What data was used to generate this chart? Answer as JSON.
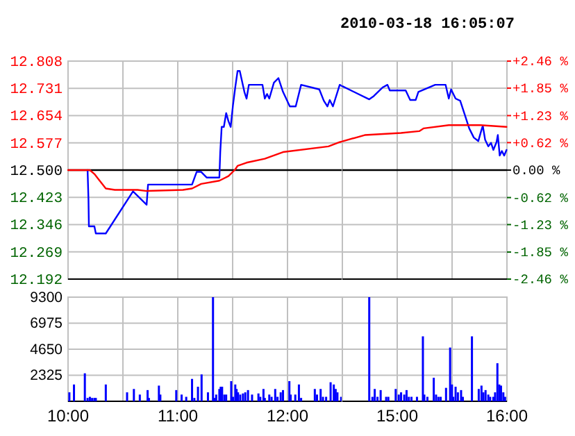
{
  "chart_data": [
    {
      "type": "line",
      "grid": true,
      "tick_labels": "y",
      "xlim": [
        10,
        12.5
      ],
      "xticks": [
        {
          "value": 10,
          "label": null
        },
        {
          "value": 10.5,
          "label": null
        },
        {
          "value": 11,
          "label": null
        },
        {
          "value": 11.5,
          "label": null
        },
        {
          "value": 12,
          "label": null
        },
        {
          "value": 12.5,
          "label": null
        }
      ],
      "ylim": [
        12.192,
        12.808
      ],
      "yticks": [
        {
          "value": 12.192,
          "label": "12.192"
        },
        {
          "value": 12.269,
          "label": "12.269"
        },
        {
          "value": 12.346,
          "label": "12.346"
        },
        {
          "value": 12.423,
          "label": "12.423"
        },
        {
          "value": 12.5,
          "label": "12.500"
        },
        {
          "value": 12.577,
          "label": "12.577"
        },
        {
          "value": 12.654,
          "label": "12.654"
        },
        {
          "value": 12.731,
          "label": "12.731"
        },
        {
          "value": 12.808,
          "label": "12.808"
        }
      ],
      "ref_lines": [
        {
          "axis": "y",
          "value": 12.5,
          "color": "#000000"
        }
      ],
      "series": [
        {
          "color": "#0000ff",
          "x": [
            10.178,
            10.186,
            10.19,
            10.24,
            10.253,
            10.344,
            10.592,
            10.716,
            10.729,
            11.13,
            11.172,
            11.213,
            11.263,
            11.379,
            11.387,
            11.4,
            11.42,
            11.441,
            11.462,
            11.482,
            11.503,
            11.524,
            11.545,
            11.565,
            11.607,
            11.627,
            11.648,
            11.772,
            11.793,
            11.814,
            11.834,
            11.876,
            11.917,
            11.959,
            12.021,
            12.075,
            12.124,
            12.29,
            12.331,
            12.364,
            12.385,
            12.414,
            12.476,
            12.5
          ],
          "values": [
            12.5,
            12.418,
            12.341,
            12.341,
            12.321,
            12.321,
            12.44,
            12.402,
            12.459,
            12.459,
            12.495,
            12.495,
            12.479,
            12.479,
            12.55,
            12.622,
            12.622,
            12.661,
            12.638,
            12.622,
            12.683,
            12.734,
            12.78,
            12.78,
            12.721,
            12.702,
            12.741,
            12.741,
            12.702,
            12.715,
            12.702,
            12.747,
            12.76,
            12.721,
            12.68,
            12.68,
            12.741,
            12.728,
            12.696,
            12.68,
            12.698,
            12.68,
            12.741,
            12.737
          ]
        },
        {
          "color": "#ff0000",
          "x": [
            10,
            10.199,
            10.24,
            10.344,
            10.427,
            10.634,
            10.716,
            11.048,
            11.13,
            11.213,
            11.379,
            11.462,
            11.524,
            11.545,
            11.627,
            11.793,
            11.959,
            12.373,
            12.476,
            12.5
          ],
          "values": [
            12.5,
            12.5,
            12.489,
            12.448,
            12.444,
            12.444,
            12.441,
            12.444,
            12.448,
            12.461,
            12.47,
            12.483,
            12.502,
            12.512,
            12.521,
            12.532,
            12.551,
            12.567,
            12.579,
            12.581
          ]
        }
      ]
    },
    {
      "type": "line",
      "title": "2010-03-18 16:05:07",
      "grid": true,
      "tick_labels": "y",
      "xlim": [
        14.5,
        16
      ],
      "xticks": [
        {
          "value": 14.5,
          "label": null
        },
        {
          "value": 15,
          "label": null
        },
        {
          "value": 15.5,
          "label": null
        },
        {
          "value": 16,
          "label": null
        }
      ],
      "ylim": [
        12.192,
        12.808
      ],
      "y2lim": [
        -2.46,
        2.46
      ],
      "y2ticks": [
        {
          "value": -2.46,
          "label": "-2.46 %"
        },
        {
          "value": -1.85,
          "label": "-1.85 %"
        },
        {
          "value": -1.23,
          "label": "-1.23 %"
        },
        {
          "value": -0.62,
          "label": "-0.62 %"
        },
        {
          "value": 0,
          "label": "0.00 %"
        },
        {
          "value": 0.62,
          "label": "+0.62 %"
        },
        {
          "value": 1.23,
          "label": "+1.23 %"
        },
        {
          "value": 1.85,
          "label": "+1.85 %"
        },
        {
          "value": 2.46,
          "label": "+2.46 %"
        }
      ],
      "ref_lines": [
        {
          "axis": "y",
          "value": 12.5,
          "color": "#000000"
        }
      ],
      "series": [
        {
          "color": "#0000ff",
          "x": [
            14.5,
            14.745,
            14.786,
            14.869,
            14.911,
            14.932,
            15.077,
            15.118,
            15.168,
            15.193,
            15.346,
            15.441,
            15.47,
            15.491,
            15.532,
            15.574,
            15.615,
            15.656,
            15.698,
            15.739,
            15.772,
            15.78,
            15.801,
            15.83,
            15.855,
            15.876,
            15.905,
            15.917,
            15.934,
            15.954,
            15.975,
            15.996
          ],
          "values": [
            12.737,
            12.7,
            12.709,
            12.734,
            12.741,
            12.725,
            12.725,
            12.698,
            12.698,
            12.721,
            12.741,
            12.741,
            12.702,
            12.728,
            12.702,
            12.696,
            12.657,
            12.618,
            12.592,
            12.582,
            12.618,
            12.625,
            12.586,
            12.567,
            12.577,
            12.557,
            12.579,
            12.599,
            12.541,
            12.554,
            12.541,
            12.557
          ]
        },
        {
          "color": "#ff0000",
          "x": [
            14.5,
            14.704,
            15.035,
            15.201,
            15.242,
            15.47,
            15.76,
            15.996
          ],
          "values": [
            12.581,
            12.599,
            12.605,
            12.61,
            12.618,
            12.627,
            12.627,
            12.622
          ]
        }
      ]
    },
    {
      "type": "bar",
      "grid": true,
      "color": "#0000ff",
      "xlim": [
        10,
        12.5
      ],
      "xticks": [
        {
          "value": 10,
          "label": "10:00"
        },
        {
          "value": 10.5,
          "label": null
        },
        {
          "value": 11,
          "label": "11:00"
        },
        {
          "value": 11.5,
          "label": null
        },
        {
          "value": 12,
          "label": "12:00"
        },
        {
          "value": 12.5,
          "label": null
        }
      ],
      "ylim": [
        0,
        9300
      ],
      "yticks": [
        2325,
        4650,
        6975,
        9300
      ],
      "x": [
        10.012,
        10.054,
        10.153,
        10.178,
        10.199,
        10.219,
        10.24,
        10.253,
        10.344,
        10.538,
        10.6,
        10.654,
        10.725,
        10.737,
        10.828,
        10.841,
        10.986,
        11.035,
        11.077,
        11.13,
        11.151,
        11.184,
        11.217,
        11.275,
        11.321,
        11.337,
        11.35,
        11.379,
        11.391,
        11.404,
        11.424,
        11.441,
        11.487,
        11.503,
        11.524,
        11.536,
        11.549,
        11.569,
        11.594,
        11.615,
        11.64,
        11.677,
        11.735,
        11.752,
        11.781,
        11.793,
        11.834,
        11.855,
        11.888,
        11.909,
        11.938,
        11.959,
        12.017,
        12.029,
        12.071,
        12.104,
        12.124,
        12.249,
        12.269,
        12.302,
        12.323,
        12.352,
        12.393,
        12.422,
        12.439,
        12.455,
        12.489
      ],
      "values": [
        800,
        1500,
        2500,
        300,
        400,
        300,
        300,
        300,
        1500,
        800,
        1100,
        600,
        1000,
        300,
        1400,
        600,
        1000,
        600,
        400,
        2000,
        300,
        1300,
        2400,
        800,
        9300,
        300,
        600,
        1100,
        1300,
        1300,
        600,
        600,
        1800,
        400,
        1500,
        1100,
        800,
        600,
        700,
        800,
        1000,
        600,
        700,
        400,
        1100,
        300,
        600,
        400,
        1100,
        400,
        800,
        1000,
        1800,
        600,
        600,
        1500,
        300,
        1100,
        600,
        1100,
        400,
        400,
        1700,
        1500,
        1100,
        800,
        400
      ]
    },
    {
      "type": "bar",
      "grid": true,
      "color": "#0000ff",
      "tick_labels": "x",
      "xlim": [
        14.5,
        16
      ],
      "xticks": [
        {
          "value": 14.5,
          "label": null
        },
        {
          "value": 15,
          "label": "15:00"
        },
        {
          "value": 15.5,
          "label": null
        },
        {
          "value": 16,
          "label": "16:00"
        }
      ],
      "ylim": [
        0,
        9300
      ],
      "yticks": [
        2325,
        4650,
        6975,
        9300
      ],
      "x": [
        14.745,
        14.774,
        14.795,
        14.82,
        14.849,
        14.899,
        14.919,
        14.986,
        15.014,
        15.035,
        15.064,
        15.085,
        15.106,
        15.13,
        15.18,
        15.234,
        15.247,
        15.275,
        15.333,
        15.354,
        15.375,
        15.396,
        15.445,
        15.482,
        15.499,
        15.511,
        15.532,
        15.553,
        15.582,
        15.598,
        15.681,
        15.743,
        15.768,
        15.785,
        15.805,
        15.83,
        15.847,
        15.876,
        15.892,
        15.913,
        15.93,
        15.946,
        15.967,
        15.983
      ],
      "values": [
        9300,
        400,
        1100,
        400,
        1000,
        400,
        400,
        1100,
        600,
        800,
        600,
        1000,
        400,
        400,
        400,
        5800,
        600,
        400,
        2100,
        600,
        400,
        400,
        1200,
        4800,
        1500,
        400,
        1300,
        800,
        1000,
        400,
        5800,
        1100,
        1400,
        800,
        1000,
        600,
        400,
        400,
        800,
        3400,
        1500,
        1400,
        800,
        400
      ]
    }
  ]
}
